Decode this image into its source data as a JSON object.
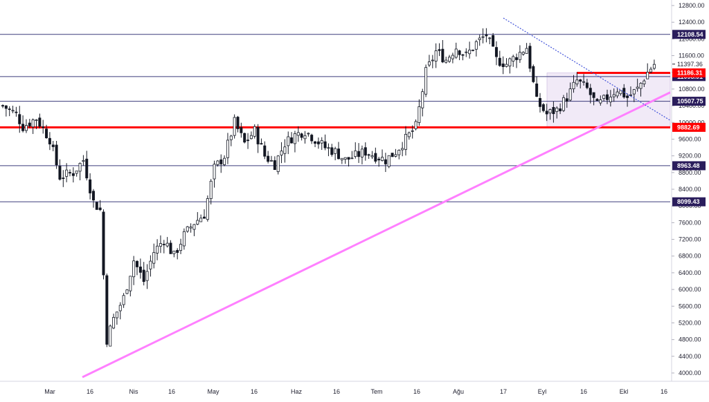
{
  "chart_data": {
    "type": "candlestick",
    "y_axis": {
      "side": "right",
      "ticks": [
        "12800.00",
        "12400.00",
        "12000.00",
        "11600.00",
        "11200.00",
        "10800.00",
        "10400.00",
        "10000.00",
        "9600.00",
        "9200.00",
        "8800.00",
        "8400.00",
        "8000.00",
        "7600.00",
        "7200.00",
        "6800.00",
        "6400.00",
        "6000.00",
        "5600.00",
        "5200.00",
        "4800.00",
        "4400.00",
        "4000.00"
      ],
      "ylim": [
        3800,
        13000
      ]
    },
    "x_axis": {
      "ticks": [
        "Mar",
        "16",
        "Nis",
        "16",
        "May",
        "16",
        "Haz",
        "16",
        "Tem",
        "16",
        "Ağu",
        "17",
        "Eyl",
        "16",
        "Ekl",
        "16"
      ]
    },
    "horizontal_levels": [
      {
        "label": "12108.54",
        "value": 12108.54,
        "color": "#3a3a7a",
        "tag_color": "#2a1d5c",
        "thick": false
      },
      {
        "label": "11098.91",
        "value": 11098.91,
        "color": "#3a3a7a",
        "tag_color": "#2a1d5c",
        "thick": false
      },
      {
        "label": "10507.75",
        "value": 10507.75,
        "color": "#3a3a7a",
        "tag_color": "#2a1d5c",
        "thick": false
      },
      {
        "label": "9882.69",
        "value": 9882.69,
        "color": "#ff0000",
        "tag_color": "#ff0000",
        "thick": true
      },
      {
        "label": "8963.48",
        "value": 8963.48,
        "color": "#3a3a7a",
        "tag_color": "#2a1d5c",
        "thick": false
      },
      {
        "label": "8099.43",
        "value": 8099.43,
        "color": "#3a3a7a",
        "tag_color": "#2a1d5c",
        "thick": false
      }
    ],
    "resistance_segment": {
      "label": "11186.31",
      "value": 11186.31,
      "color": "#ff0000"
    },
    "last_price": {
      "label": "11397.36",
      "value": 11397.36
    },
    "rectangle_zone": {
      "low": 9882.69,
      "high": 11186.31,
      "color": "#e9def2"
    },
    "pink_trendline": {
      "color": "#ff80ff"
    },
    "blue_dotted_trendline": {
      "color": "#3f51d9"
    },
    "anchor_closes": [
      [
        0,
        10400
      ],
      [
        4,
        10200
      ],
      [
        6,
        9900
      ],
      [
        10,
        10100
      ],
      [
        14,
        9600
      ],
      [
        17,
        8700
      ],
      [
        21,
        8800
      ],
      [
        24,
        9100
      ],
      [
        27,
        8100
      ],
      [
        29,
        7900
      ],
      [
        31,
        4800
      ],
      [
        33,
        5300
      ],
      [
        36,
        5800
      ],
      [
        39,
        6700
      ],
      [
        42,
        6200
      ],
      [
        45,
        6900
      ],
      [
        48,
        7200
      ],
      [
        51,
        6800
      ],
      [
        54,
        7300
      ],
      [
        57,
        7600
      ],
      [
        60,
        7800
      ],
      [
        63,
        8900
      ],
      [
        66,
        9200
      ],
      [
        69,
        10000
      ],
      [
        72,
        9500
      ],
      [
        75,
        9800
      ],
      [
        78,
        9200
      ],
      [
        81,
        9000
      ],
      [
        84,
        9500
      ],
      [
        87,
        9700
      ],
      [
        90,
        9800
      ],
      [
        93,
        9600
      ],
      [
        96,
        9400
      ],
      [
        99,
        9300
      ],
      [
        102,
        9100
      ],
      [
        105,
        9200
      ],
      [
        108,
        9300
      ],
      [
        111,
        9200
      ],
      [
        114,
        9100
      ],
      [
        117,
        9300
      ],
      [
        120,
        9600
      ],
      [
        123,
        9900
      ],
      [
        126,
        11200
      ],
      [
        129,
        11700
      ],
      [
        132,
        11500
      ],
      [
        135,
        11800
      ],
      [
        138,
        11600
      ],
      [
        141,
        11900
      ],
      [
        144,
        12100
      ],
      [
        147,
        11500
      ],
      [
        150,
        11400
      ],
      [
        153,
        11600
      ],
      [
        156,
        11800
      ],
      [
        159,
        10500
      ],
      [
        162,
        10200
      ],
      [
        165,
        10300
      ],
      [
        168,
        10600
      ],
      [
        171,
        11000
      ],
      [
        174,
        10800
      ],
      [
        177,
        10400
      ],
      [
        180,
        10600
      ],
      [
        183,
        10800
      ],
      [
        186,
        10600
      ],
      [
        189,
        10800
      ],
      [
        192,
        11200
      ],
      [
        194,
        11397
      ]
    ]
  }
}
